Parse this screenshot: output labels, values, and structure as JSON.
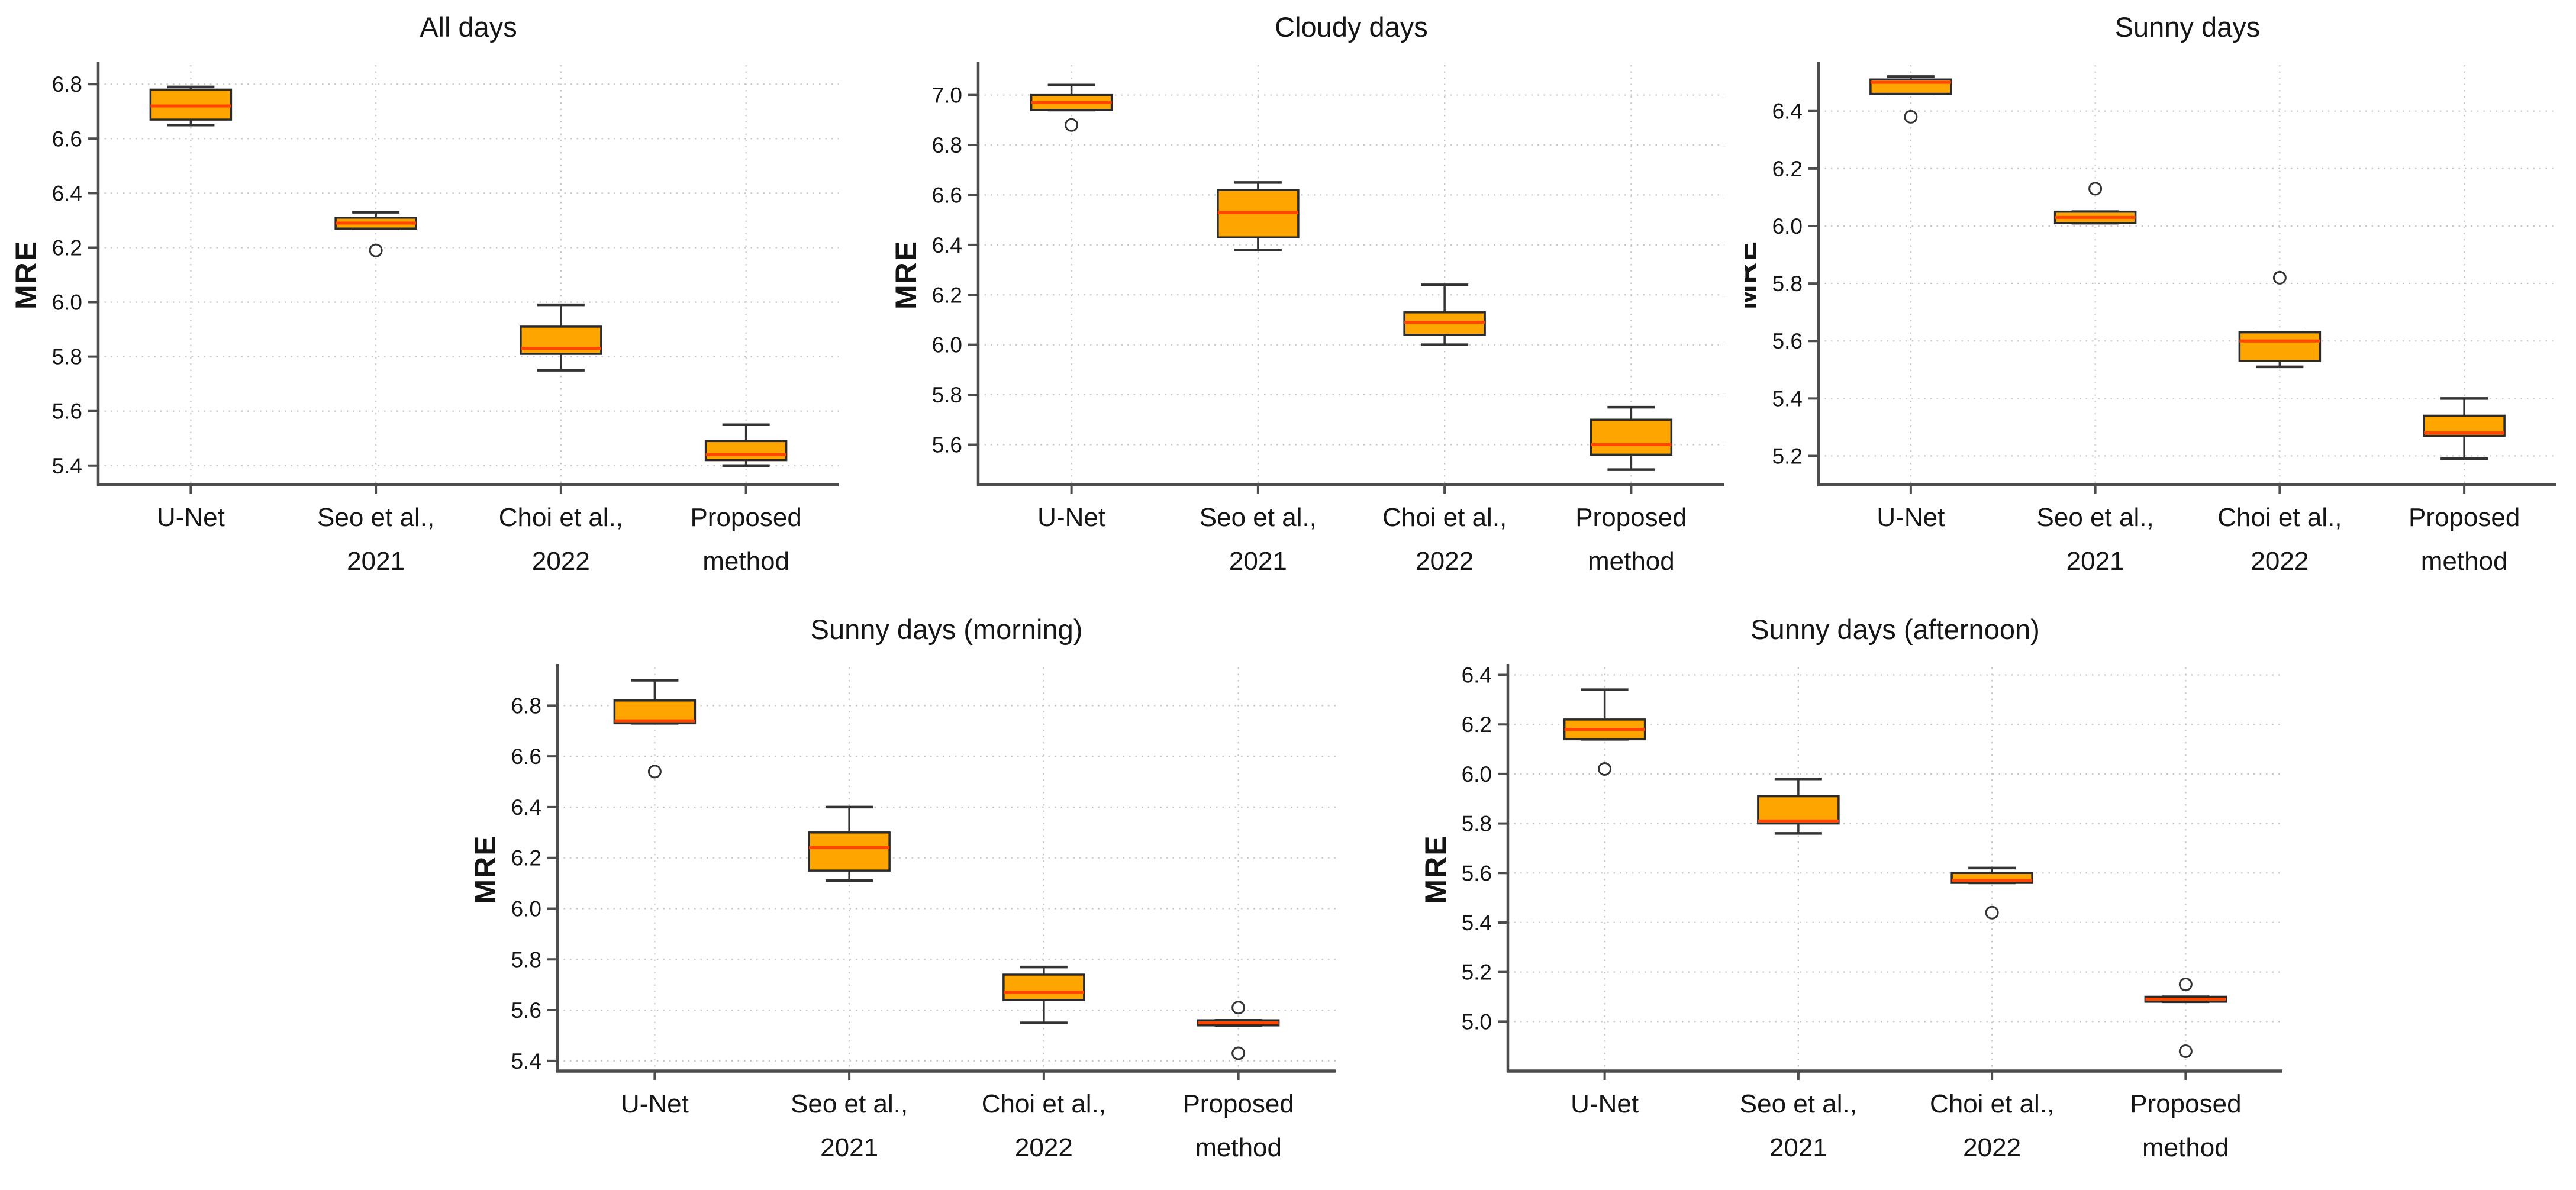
{
  "figure": {
    "background": "#ffffff",
    "box_fill": "#FFA500",
    "box_edge_color": "#2b2b2b",
    "median_color": "#FF4500",
    "whisker_color": "#333333",
    "grid_color": "#c7c7c7",
    "spine_color": "#4d4d4d",
    "text_color": "#151515"
  },
  "chart_data": [
    {
      "type": "box",
      "title": "All days",
      "ylabel": "MRE",
      "categories": [
        "U-Net",
        "Seo et al.,\n2021",
        "Choi et al.,\n2022",
        "Proposed\nmethod"
      ],
      "ylim": [
        5.33,
        6.87
      ],
      "yticks": [
        5.4,
        5.6,
        5.8,
        6.0,
        6.2,
        6.4,
        6.6,
        6.8
      ],
      "grid": true,
      "boxes": [
        {
          "label": "U-Net",
          "whislo": 6.65,
          "q1": 6.67,
          "med": 6.72,
          "q3": 6.78,
          "whishi": 6.79,
          "outliers": []
        },
        {
          "label": "Seo et al., 2021",
          "whislo": 6.27,
          "q1": 6.27,
          "med": 6.29,
          "q3": 6.31,
          "whishi": 6.33,
          "outliers": [
            6.19
          ]
        },
        {
          "label": "Choi et al., 2022",
          "whislo": 5.75,
          "q1": 5.81,
          "med": 5.83,
          "q3": 5.91,
          "whishi": 5.99,
          "outliers": []
        },
        {
          "label": "Proposed method",
          "whislo": 5.4,
          "q1": 5.42,
          "med": 5.44,
          "q3": 5.49,
          "whishi": 5.55,
          "outliers": []
        }
      ]
    },
    {
      "type": "box",
      "title": "Cloudy days",
      "ylabel": "MRE",
      "categories": [
        "U-Net",
        "Seo et al.,\n2021",
        "Choi et al.,\n2022",
        "Proposed\nmethod"
      ],
      "ylim": [
        5.44,
        7.12
      ],
      "yticks": [
        5.6,
        5.8,
        6.0,
        6.2,
        6.4,
        6.6,
        6.8,
        7.0
      ],
      "grid": true,
      "boxes": [
        {
          "label": "U-Net",
          "whislo": 6.94,
          "q1": 6.94,
          "med": 6.97,
          "q3": 7.0,
          "whishi": 7.04,
          "outliers": [
            6.88
          ]
        },
        {
          "label": "Seo et al., 2021",
          "whislo": 6.38,
          "q1": 6.43,
          "med": 6.53,
          "q3": 6.62,
          "whishi": 6.65,
          "outliers": []
        },
        {
          "label": "Choi et al., 2022",
          "whislo": 6.0,
          "q1": 6.04,
          "med": 6.09,
          "q3": 6.13,
          "whishi": 6.24,
          "outliers": []
        },
        {
          "label": "Proposed method",
          "whislo": 5.5,
          "q1": 5.56,
          "med": 5.6,
          "q3": 5.7,
          "whishi": 5.75,
          "outliers": []
        }
      ]
    },
    {
      "type": "box",
      "title": "Sunny days",
      "ylabel": "MRE",
      "categories": [
        "U-Net",
        "Seo et al.,\n2021",
        "Choi et al.,\n2022",
        "Proposed\nmethod"
      ],
      "ylim": [
        5.1,
        6.56
      ],
      "yticks": [
        5.2,
        5.4,
        5.6,
        5.8,
        6.0,
        6.2,
        6.4
      ],
      "grid": true,
      "boxes": [
        {
          "label": "U-Net",
          "whislo": 6.46,
          "q1": 6.46,
          "med": 6.5,
          "q3": 6.51,
          "whishi": 6.52,
          "outliers": [
            6.38
          ]
        },
        {
          "label": "Seo et al., 2021",
          "whislo": 6.01,
          "q1": 6.01,
          "med": 6.03,
          "q3": 6.05,
          "whishi": 6.05,
          "outliers": [
            6.13
          ]
        },
        {
          "label": "Choi et al., 2022",
          "whislo": 5.51,
          "q1": 5.53,
          "med": 5.6,
          "q3": 5.63,
          "whishi": 5.63,
          "outliers": [
            5.82
          ]
        },
        {
          "label": "Proposed method",
          "whislo": 5.19,
          "q1": 5.27,
          "med": 5.28,
          "q3": 5.34,
          "whishi": 5.4,
          "outliers": []
        }
      ]
    },
    {
      "type": "box",
      "title": "Sunny days (morning)",
      "ylabel": "MRE",
      "categories": [
        "U-Net",
        "Seo et al.,\n2021",
        "Choi et al.,\n2022",
        "Proposed\nmethod"
      ],
      "ylim": [
        5.36,
        6.95
      ],
      "yticks": [
        5.4,
        5.6,
        5.8,
        6.0,
        6.2,
        6.4,
        6.6,
        6.8
      ],
      "grid": true,
      "boxes": [
        {
          "label": "U-Net",
          "whislo": 6.73,
          "q1": 6.73,
          "med": 6.74,
          "q3": 6.82,
          "whishi": 6.9,
          "outliers": [
            6.54
          ]
        },
        {
          "label": "Seo et al., 2021",
          "whislo": 6.11,
          "q1": 6.15,
          "med": 6.24,
          "q3": 6.3,
          "whishi": 6.4,
          "outliers": []
        },
        {
          "label": "Choi et al., 2022",
          "whislo": 5.55,
          "q1": 5.64,
          "med": 5.67,
          "q3": 5.74,
          "whishi": 5.77,
          "outliers": []
        },
        {
          "label": "Proposed method",
          "whislo": 5.54,
          "q1": 5.54,
          "med": 5.55,
          "q3": 5.56,
          "whishi": 5.56,
          "outliers": [
            5.61,
            5.43
          ]
        }
      ]
    },
    {
      "type": "box",
      "title": "Sunny days (afternoon)",
      "ylabel": "MRE",
      "categories": [
        "U-Net",
        "Seo et al.,\n2021",
        "Choi et al.,\n2022",
        "Proposed\nmethod"
      ],
      "ylim": [
        4.8,
        6.43
      ],
      "yticks": [
        5.0,
        5.2,
        5.4,
        5.6,
        5.8,
        6.0,
        6.2,
        6.4
      ],
      "grid": true,
      "boxes": [
        {
          "label": "U-Net",
          "whislo": 6.14,
          "q1": 6.14,
          "med": 6.18,
          "q3": 6.22,
          "whishi": 6.34,
          "outliers": [
            6.02
          ]
        },
        {
          "label": "Seo et al., 2021",
          "whislo": 5.76,
          "q1": 5.8,
          "med": 5.81,
          "q3": 5.91,
          "whishi": 5.98,
          "outliers": []
        },
        {
          "label": "Choi et al., 2022",
          "whislo": 5.56,
          "q1": 5.56,
          "med": 5.57,
          "q3": 5.6,
          "whishi": 5.62,
          "outliers": [
            5.44
          ]
        },
        {
          "label": "Proposed method",
          "whislo": 5.08,
          "q1": 5.08,
          "med": 5.09,
          "q3": 5.1,
          "whishi": 5.1,
          "outliers": [
            5.15,
            4.88
          ]
        }
      ]
    }
  ]
}
